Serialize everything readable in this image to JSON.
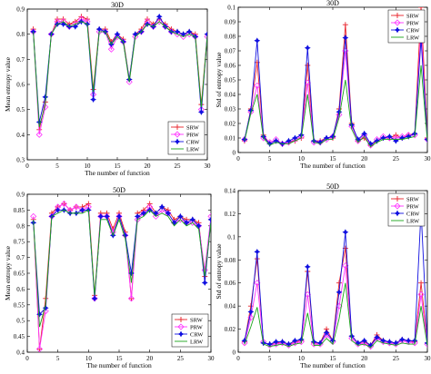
{
  "chart_data": [
    {
      "type": "line",
      "title": "30D",
      "xlabel": "The number of function",
      "ylabel": "Mean entropy value",
      "xlim": [
        0,
        30
      ],
      "ylim": [
        0.3,
        0.9
      ],
      "xticks": [
        0,
        5,
        10,
        15,
        20,
        25,
        30
      ],
      "yticks": [
        0.3,
        0.4,
        0.5,
        0.6,
        0.7,
        0.8,
        0.9
      ],
      "legend": "lower-right",
      "x": [
        1,
        2,
        3,
        4,
        5,
        6,
        7,
        8,
        9,
        10,
        11,
        12,
        13,
        14,
        15,
        16,
        17,
        18,
        19,
        20,
        21,
        22,
        23,
        24,
        25,
        26,
        27,
        28,
        29,
        30
      ],
      "series": [
        {
          "name": "SRW",
          "color": "#e8222a",
          "marker": "plus",
          "values": [
            0.82,
            0.42,
            0.53,
            0.8,
            0.86,
            0.86,
            0.84,
            0.85,
            0.87,
            0.86,
            0.58,
            0.82,
            0.82,
            0.77,
            0.8,
            0.78,
            0.62,
            0.8,
            0.82,
            0.86,
            0.84,
            0.86,
            0.84,
            0.82,
            0.81,
            0.8,
            0.81,
            0.8,
            0.52,
            0.8
          ]
        },
        {
          "name": "PRW",
          "color": "#ff33ff",
          "marker": "diamond",
          "values": [
            0.81,
            0.4,
            0.51,
            0.8,
            0.85,
            0.85,
            0.83,
            0.84,
            0.86,
            0.85,
            0.56,
            0.81,
            0.81,
            0.74,
            0.79,
            0.77,
            0.61,
            0.79,
            0.81,
            0.85,
            0.83,
            0.85,
            0.83,
            0.81,
            0.8,
            0.79,
            0.8,
            0.79,
            0.5,
            0.79
          ]
        },
        {
          "name": "CRW",
          "color": "#1010e0",
          "marker": "star",
          "values": [
            0.81,
            0.45,
            0.55,
            0.8,
            0.84,
            0.84,
            0.83,
            0.83,
            0.85,
            0.84,
            0.54,
            0.82,
            0.81,
            0.76,
            0.8,
            0.77,
            0.62,
            0.8,
            0.81,
            0.84,
            0.83,
            0.87,
            0.83,
            0.81,
            0.81,
            0.8,
            0.81,
            0.79,
            0.49,
            0.8
          ]
        },
        {
          "name": "LRW",
          "color": "#1aa51a",
          "marker": "none",
          "values": [
            0.81,
            0.43,
            0.52,
            0.8,
            0.84,
            0.85,
            0.83,
            0.84,
            0.85,
            0.84,
            0.57,
            0.81,
            0.81,
            0.76,
            0.79,
            0.77,
            0.61,
            0.79,
            0.81,
            0.84,
            0.83,
            0.85,
            0.83,
            0.81,
            0.8,
            0.79,
            0.8,
            0.79,
            0.51,
            0.79
          ]
        }
      ]
    },
    {
      "type": "line",
      "title": "30D",
      "xlabel": "The number of function",
      "ylabel": "Std of entropy value",
      "xlim": [
        0,
        30
      ],
      "ylim": [
        0,
        0.1
      ],
      "xticks": [
        0,
        5,
        10,
        15,
        20,
        25,
        30
      ],
      "yticks": [
        0,
        0.01,
        0.02,
        0.03,
        0.04,
        0.05,
        0.06,
        0.07,
        0.08,
        0.09,
        0.1
      ],
      "legend": "top-right",
      "x": [
        1,
        2,
        3,
        4,
        5,
        6,
        7,
        8,
        9,
        10,
        11,
        12,
        13,
        14,
        15,
        16,
        17,
        18,
        19,
        20,
        21,
        22,
        23,
        24,
        25,
        26,
        27,
        28,
        29,
        30
      ],
      "series": [
        {
          "name": "SRW",
          "color": "#e8222a",
          "marker": "plus",
          "values": [
            0.008,
            0.03,
            0.062,
            0.012,
            0.006,
            0.008,
            0.006,
            0.007,
            0.008,
            0.01,
            0.06,
            0.008,
            0.008,
            0.01,
            0.01,
            0.03,
            0.088,
            0.02,
            0.008,
            0.01,
            0.005,
            0.008,
            0.01,
            0.01,
            0.012,
            0.01,
            0.012,
            0.013,
            0.1,
            0.01
          ]
        },
        {
          "name": "PRW",
          "color": "#ff33ff",
          "marker": "diamond",
          "values": [
            0.009,
            0.028,
            0.046,
            0.01,
            0.007,
            0.009,
            0.006,
            0.007,
            0.009,
            0.011,
            0.048,
            0.007,
            0.007,
            0.009,
            0.011,
            0.026,
            0.07,
            0.018,
            0.008,
            0.012,
            0.005,
            0.009,
            0.011,
            0.01,
            0.01,
            0.011,
            0.012,
            0.012,
            0.085,
            0.009
          ]
        },
        {
          "name": "CRW",
          "color": "#1010e0",
          "marker": "star",
          "values": [
            0.009,
            0.029,
            0.077,
            0.011,
            0.006,
            0.008,
            0.006,
            0.008,
            0.01,
            0.012,
            0.072,
            0.008,
            0.007,
            0.01,
            0.011,
            0.028,
            0.079,
            0.019,
            0.009,
            0.013,
            0.006,
            0.008,
            0.01,
            0.011,
            0.008,
            0.01,
            0.011,
            0.013,
            0.078,
            0.009
          ]
        },
        {
          "name": "LRW",
          "color": "#1aa51a",
          "marker": "none",
          "values": [
            0.008,
            0.027,
            0.04,
            0.01,
            0.005,
            0.007,
            0.006,
            0.006,
            0.008,
            0.01,
            0.04,
            0.007,
            0.006,
            0.009,
            0.009,
            0.024,
            0.05,
            0.016,
            0.007,
            0.011,
            0.004,
            0.007,
            0.009,
            0.009,
            0.009,
            0.009,
            0.01,
            0.011,
            0.06,
            0.008
          ]
        }
      ]
    },
    {
      "type": "line",
      "title": "50D",
      "xlabel": "The number of function",
      "ylabel": "Mean entropy value",
      "xlim": [
        0,
        30
      ],
      "ylim": [
        0.4,
        0.9
      ],
      "xticks": [
        0,
        5,
        10,
        15,
        20,
        25,
        30
      ],
      "yticks": [
        0.4,
        0.45,
        0.5,
        0.55,
        0.6,
        0.65,
        0.7,
        0.75,
        0.8,
        0.85,
        0.9
      ],
      "legend": "lower-right",
      "x": [
        1,
        2,
        3,
        4,
        5,
        6,
        7,
        8,
        9,
        10,
        11,
        12,
        13,
        14,
        15,
        16,
        17,
        18,
        19,
        20,
        21,
        22,
        23,
        24,
        25,
        26,
        27,
        28,
        29,
        30
      ],
      "series": [
        {
          "name": "SRW",
          "color": "#e8222a",
          "marker": "plus",
          "values": [
            0.82,
            0.41,
            0.57,
            0.84,
            0.86,
            0.87,
            0.85,
            0.86,
            0.86,
            0.87,
            0.58,
            0.84,
            0.84,
            0.79,
            0.84,
            0.78,
            0.57,
            0.84,
            0.85,
            0.87,
            0.84,
            0.86,
            0.85,
            0.82,
            0.83,
            0.82,
            0.82,
            0.81,
            0.64,
            0.82
          ]
        },
        {
          "name": "PRW",
          "color": "#ff33ff",
          "marker": "diamond",
          "values": [
            0.83,
            0.41,
            0.53,
            0.83,
            0.86,
            0.87,
            0.85,
            0.86,
            0.85,
            0.86,
            0.57,
            0.83,
            0.83,
            0.78,
            0.83,
            0.77,
            0.57,
            0.82,
            0.84,
            0.86,
            0.83,
            0.85,
            0.84,
            0.81,
            0.82,
            0.81,
            0.81,
            0.8,
            0.66,
            0.83
          ]
        },
        {
          "name": "CRW",
          "color": "#1010e0",
          "marker": "star",
          "values": [
            0.81,
            0.52,
            0.54,
            0.83,
            0.85,
            0.85,
            0.84,
            0.84,
            0.85,
            0.85,
            0.57,
            0.83,
            0.83,
            0.77,
            0.83,
            0.77,
            0.65,
            0.83,
            0.84,
            0.85,
            0.84,
            0.86,
            0.84,
            0.81,
            0.83,
            0.81,
            0.82,
            0.8,
            0.62,
            0.82
          ]
        },
        {
          "name": "LRW",
          "color": "#1aa51a",
          "marker": "none",
          "values": [
            0.82,
            0.48,
            0.55,
            0.83,
            0.84,
            0.85,
            0.84,
            0.84,
            0.84,
            0.85,
            0.58,
            0.82,
            0.82,
            0.77,
            0.82,
            0.76,
            0.62,
            0.82,
            0.83,
            0.85,
            0.83,
            0.84,
            0.83,
            0.8,
            0.82,
            0.8,
            0.81,
            0.79,
            0.64,
            0.81
          ]
        }
      ]
    },
    {
      "type": "line",
      "title": "50D",
      "xlabel": "The number of function",
      "ylabel": "Std of entropy value",
      "xlim": [
        0,
        30
      ],
      "ylim": [
        0,
        0.14
      ],
      "xticks": [
        0,
        5,
        10,
        15,
        20,
        25,
        30
      ],
      "yticks": [
        0,
        0.02,
        0.04,
        0.06,
        0.08,
        0.1,
        0.12,
        0.14
      ],
      "legend": "top-right",
      "x": [
        1,
        2,
        3,
        4,
        5,
        6,
        7,
        8,
        9,
        10,
        11,
        12,
        13,
        14,
        15,
        16,
        17,
        18,
        19,
        20,
        21,
        22,
        23,
        24,
        25,
        26,
        27,
        28,
        29,
        30
      ],
      "series": [
        {
          "name": "SRW",
          "color": "#e8222a",
          "marker": "plus",
          "values": [
            0.009,
            0.04,
            0.081,
            0.008,
            0.007,
            0.008,
            0.009,
            0.007,
            0.009,
            0.01,
            0.07,
            0.008,
            0.008,
            0.02,
            0.01,
            0.06,
            0.09,
            0.014,
            0.008,
            0.009,
            0.006,
            0.015,
            0.01,
            0.009,
            0.008,
            0.011,
            0.01,
            0.009,
            0.06,
            0.008
          ]
        },
        {
          "name": "PRW",
          "color": "#ff33ff",
          "marker": "diamond",
          "values": [
            0.008,
            0.03,
            0.06,
            0.009,
            0.006,
            0.007,
            0.008,
            0.006,
            0.008,
            0.009,
            0.05,
            0.007,
            0.007,
            0.015,
            0.009,
            0.04,
            0.075,
            0.012,
            0.007,
            0.008,
            0.005,
            0.012,
            0.009,
            0.008,
            0.007,
            0.01,
            0.009,
            0.008,
            0.05,
            0.007
          ]
        },
        {
          "name": "CRW",
          "color": "#1010e0",
          "marker": "star",
          "values": [
            0.01,
            0.035,
            0.087,
            0.008,
            0.007,
            0.009,
            0.009,
            0.007,
            0.01,
            0.011,
            0.074,
            0.009,
            0.008,
            0.017,
            0.01,
            0.052,
            0.104,
            0.014,
            0.008,
            0.01,
            0.006,
            0.013,
            0.01,
            0.009,
            0.008,
            0.011,
            0.01,
            0.01,
            0.123,
            0.008
          ]
        },
        {
          "name": "LRW",
          "color": "#1aa51a",
          "marker": "none",
          "values": [
            0.007,
            0.022,
            0.039,
            0.007,
            0.005,
            0.006,
            0.007,
            0.005,
            0.007,
            0.008,
            0.034,
            0.006,
            0.006,
            0.012,
            0.007,
            0.029,
            0.06,
            0.01,
            0.006,
            0.007,
            0.004,
            0.01,
            0.008,
            0.007,
            0.006,
            0.008,
            0.007,
            0.007,
            0.04,
            0.006
          ]
        }
      ]
    }
  ]
}
